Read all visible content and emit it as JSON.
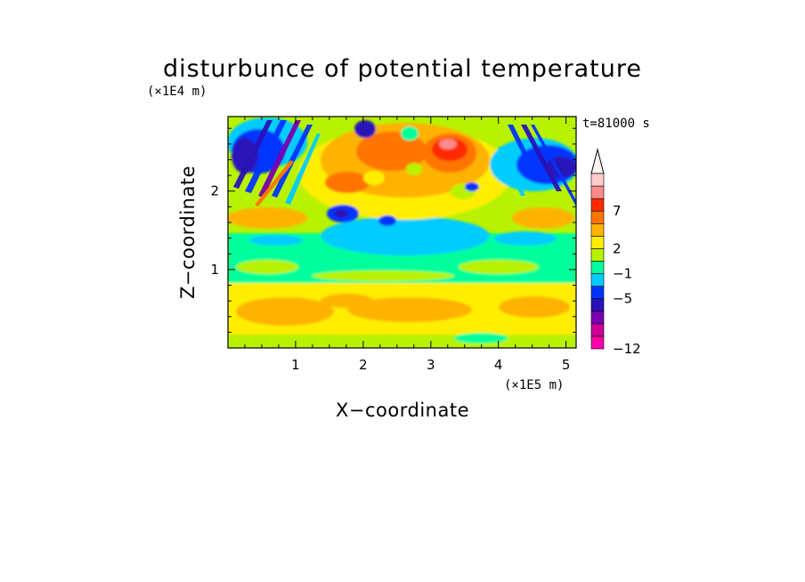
{
  "chart_data": {
    "type": "heatmap",
    "title": "disturbunce of potential temperature",
    "xlabel": "X−coordinate",
    "ylabel": "Z−coordinate",
    "x_scale_label": "(×1E5 m)",
    "y_scale_label": "(×1E4 m)",
    "time_label": "t=81000 s",
    "xlim": [
      0,
      5.15
    ],
    "ylim": [
      0,
      2.95
    ],
    "x_ticks": [
      "1",
      "2",
      "3",
      "4",
      "5"
    ],
    "y_ticks": [
      "1",
      "2"
    ],
    "colorbar": {
      "tick_labels": [
        "7",
        "2",
        "−1",
        "−5",
        "−12"
      ],
      "colors": [
        "#ff00a8",
        "#cc0099",
        "#7a00b0",
        "#2a12b8",
        "#0035ff",
        "#00ccff",
        "#00ff9c",
        "#b8f200",
        "#ffee00",
        "#ffb300",
        "#ff7400",
        "#ff2a00",
        "#ff8a8a",
        "#ffcccc"
      ],
      "extend": "max"
    }
  }
}
